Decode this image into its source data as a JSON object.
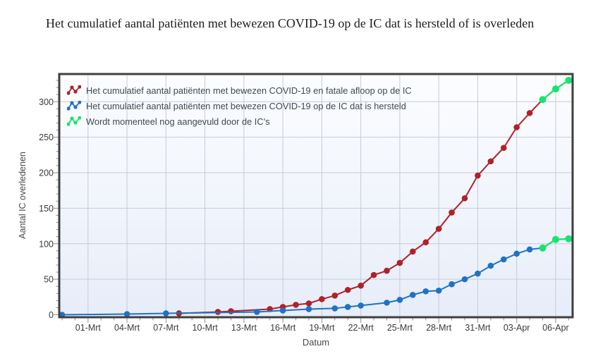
{
  "title": "Het cumulatief aantal patiënten met bewezen COVID-19 op de IC dat is hersteld of is overleden",
  "chart_data": {
    "type": "line",
    "title": "Het cumulatief aantal patiënten met bewezen COVID-19 op de IC dat is hersteld of is overleden",
    "xlabel": "Datum",
    "ylabel": "Aantal IC overledenen",
    "x_range": {
      "start": "28-Feb",
      "end": "07-Apr",
      "unit": "day"
    },
    "ylim": [
      0,
      340
    ],
    "yticks": [
      0,
      50,
      100,
      150,
      200,
      250,
      300
    ],
    "y_minor_step": 10,
    "grid": true,
    "legend_position": "top-left-inside",
    "updating_color": "#17e56d",
    "x_ticks": [
      {
        "day": 2,
        "label": "01-Mrt"
      },
      {
        "day": 5,
        "label": "04-Mrt"
      },
      {
        "day": 8,
        "label": "07-Mrt"
      },
      {
        "day": 11,
        "label": "10-Mrt"
      },
      {
        "day": 14,
        "label": "13-Mrt"
      },
      {
        "day": 17,
        "label": "16-Mrt"
      },
      {
        "day": 20,
        "label": "19-Mrt"
      },
      {
        "day": 23,
        "label": "22-Mrt"
      },
      {
        "day": 26,
        "label": "25-Mrt"
      },
      {
        "day": 29,
        "label": "28-Mrt"
      },
      {
        "day": 32,
        "label": "31-Mrt"
      },
      {
        "day": 35,
        "label": "03-Apr"
      },
      {
        "day": 38,
        "label": "06-Apr"
      }
    ],
    "legend": [
      {
        "label": "Het cumulatief aantal patiënten met bewezen COVID-19 en fatale afloop op de IC",
        "color": "#b02128"
      },
      {
        "label": "Het cumulatief aantal patiënten met bewezen COVID-19 op de IC dat is hersteld",
        "color": "#1f72c4"
      },
      {
        "label": "Wordt momenteel nog aangevuld door de IC’s",
        "color": "#17e56d"
      }
    ],
    "series": [
      {
        "name": "Het cumulatief aantal patiënten met bewezen COVID-19 en fatale afloop op de IC",
        "color": "#b02128",
        "points": [
          {
            "day": 9,
            "date": "08-Mrt",
            "value": 2,
            "updating": false
          },
          {
            "day": 12,
            "date": "11-Mrt",
            "value": 4,
            "updating": false
          },
          {
            "day": 13,
            "date": "12-Mrt",
            "value": 5,
            "updating": false
          },
          {
            "day": 16,
            "date": "15-Mrt",
            "value": 8,
            "updating": false
          },
          {
            "day": 17,
            "date": "16-Mrt",
            "value": 11,
            "updating": false
          },
          {
            "day": 18,
            "date": "17-Mrt",
            "value": 14,
            "updating": false
          },
          {
            "day": 19,
            "date": "18-Mrt",
            "value": 16,
            "updating": false
          },
          {
            "day": 20,
            "date": "19-Mrt",
            "value": 22,
            "updating": false
          },
          {
            "day": 21,
            "date": "20-Mrt",
            "value": 27,
            "updating": false
          },
          {
            "day": 22,
            "date": "21-Mrt",
            "value": 35,
            "updating": false
          },
          {
            "day": 23,
            "date": "22-Mrt",
            "value": 41,
            "updating": false
          },
          {
            "day": 24,
            "date": "23-Mrt",
            "value": 56,
            "updating": false
          },
          {
            "day": 25,
            "date": "24-Mrt",
            "value": 62,
            "updating": false
          },
          {
            "day": 26,
            "date": "25-Mrt",
            "value": 73,
            "updating": false
          },
          {
            "day": 27,
            "date": "26-Mrt",
            "value": 89,
            "updating": false
          },
          {
            "day": 28,
            "date": "27-Mrt",
            "value": 102,
            "updating": false
          },
          {
            "day": 29,
            "date": "28-Mrt",
            "value": 121,
            "updating": false
          },
          {
            "day": 30,
            "date": "29-Mrt",
            "value": 144,
            "updating": false
          },
          {
            "day": 31,
            "date": "30-Mrt",
            "value": 164,
            "updating": false
          },
          {
            "day": 32,
            "date": "31-Mrt",
            "value": 196,
            "updating": false
          },
          {
            "day": 33,
            "date": "01-Apr",
            "value": 216,
            "updating": false
          },
          {
            "day": 34,
            "date": "02-Apr",
            "value": 235,
            "updating": false
          },
          {
            "day": 35,
            "date": "03-Apr",
            "value": 264,
            "updating": false
          },
          {
            "day": 36,
            "date": "04-Apr",
            "value": 284,
            "updating": false
          },
          {
            "day": 37,
            "date": "05-Apr",
            "value": 303,
            "updating": true
          },
          {
            "day": 38,
            "date": "06-Apr",
            "value": 318,
            "updating": true
          },
          {
            "day": 39,
            "date": "07-Apr",
            "value": 330,
            "updating": true
          }
        ]
      },
      {
        "name": "Het cumulatief aantal patiënten met bewezen COVID-19 op de IC dat is hersteld",
        "color": "#1f72c4",
        "points": [
          {
            "day": 0,
            "date": "28-Feb",
            "value": 0,
            "updating": false
          },
          {
            "day": 5,
            "date": "04-Mrt",
            "value": 1,
            "updating": false
          },
          {
            "day": 8,
            "date": "07-Mrt",
            "value": 2,
            "updating": false
          },
          {
            "day": 15,
            "date": "14-Mrt",
            "value": 4,
            "updating": false
          },
          {
            "day": 17,
            "date": "16-Mrt",
            "value": 6,
            "updating": false
          },
          {
            "day": 19,
            "date": "18-Mrt",
            "value": 8,
            "updating": false
          },
          {
            "day": 21,
            "date": "20-Mrt",
            "value": 9,
            "updating": false
          },
          {
            "day": 22,
            "date": "21-Mrt",
            "value": 11,
            "updating": false
          },
          {
            "day": 23,
            "date": "22-Mrt",
            "value": 13,
            "updating": false
          },
          {
            "day": 25,
            "date": "24-Mrt",
            "value": 17,
            "updating": false
          },
          {
            "day": 26,
            "date": "25-Mrt",
            "value": 21,
            "updating": false
          },
          {
            "day": 27,
            "date": "26-Mrt",
            "value": 28,
            "updating": false
          },
          {
            "day": 28,
            "date": "27-Mrt",
            "value": 33,
            "updating": false
          },
          {
            "day": 29,
            "date": "28-Mrt",
            "value": 34,
            "updating": false
          },
          {
            "day": 30,
            "date": "29-Mrt",
            "value": 43,
            "updating": false
          },
          {
            "day": 31,
            "date": "30-Mrt",
            "value": 50,
            "updating": false
          },
          {
            "day": 32,
            "date": "31-Mrt",
            "value": 58,
            "updating": false
          },
          {
            "day": 33,
            "date": "01-Apr",
            "value": 69,
            "updating": false
          },
          {
            "day": 34,
            "date": "02-Apr",
            "value": 78,
            "updating": false
          },
          {
            "day": 35,
            "date": "03-Apr",
            "value": 86,
            "updating": false
          },
          {
            "day": 36,
            "date": "04-Apr",
            "value": 92,
            "updating": false
          },
          {
            "day": 37,
            "date": "05-Apr",
            "value": 94,
            "updating": true
          },
          {
            "day": 38,
            "date": "06-Apr",
            "value": 106,
            "updating": true
          },
          {
            "day": 39,
            "date": "07-Apr",
            "value": 107,
            "updating": true
          }
        ]
      }
    ]
  }
}
